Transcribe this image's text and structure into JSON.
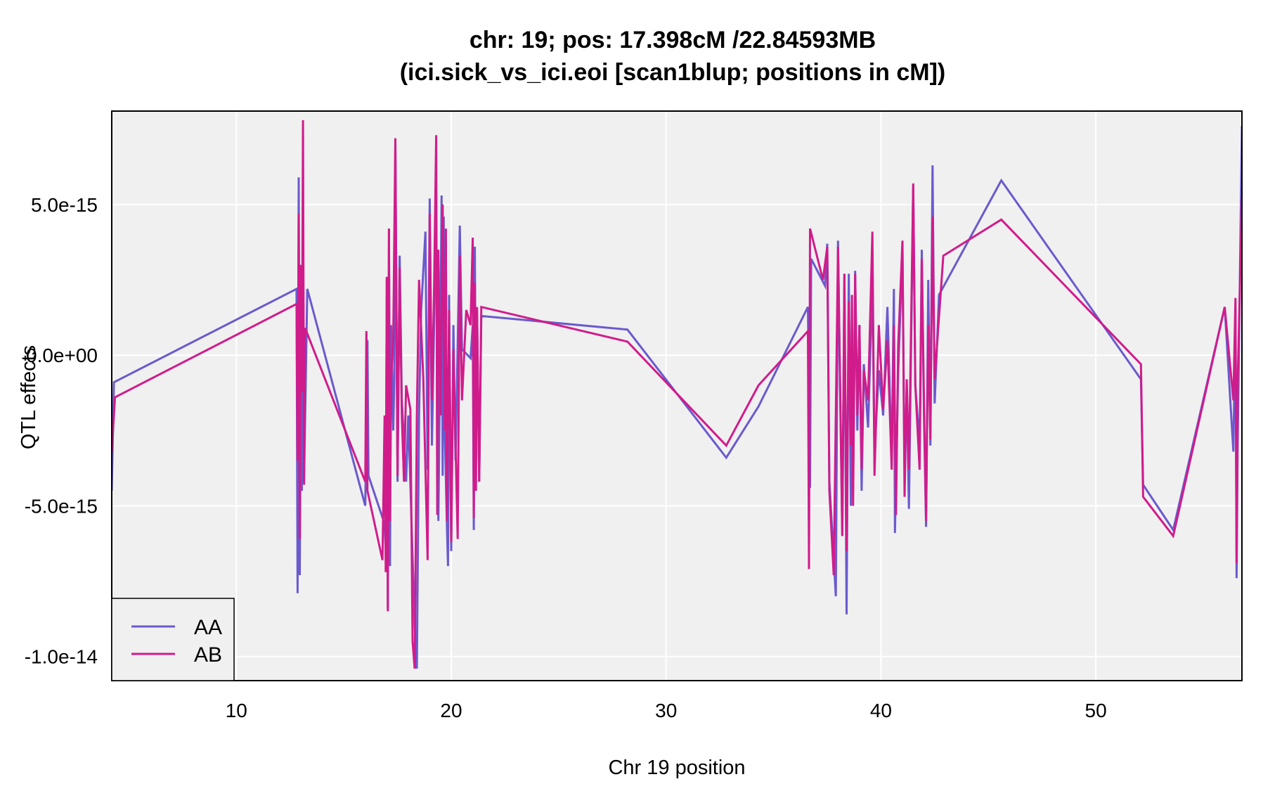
{
  "chart_data": {
    "type": "line",
    "title": "chr: 19; pos: 17.398cM /22.84593MB",
    "subtitle": "(ici.sick_vs_ici.eoi [scan1blup; positions in cM])",
    "xlabel": "Chr 19 position",
    "ylabel": "QTL effects",
    "xlim": [
      4.2,
      56.8
    ],
    "ylim": [
      -1.08e-14,
      8.1e-15
    ],
    "x_ticks": [
      10,
      20,
      30,
      40,
      50
    ],
    "x_tick_labels": [
      "10",
      "20",
      "30",
      "40",
      "50"
    ],
    "y_ticks": [
      -1e-14,
      -5e-15,
      0,
      5e-15
    ],
    "y_tick_labels": [
      "-1.0e-14",
      "-5.0e-15",
      "0.0e+00",
      "5.0e-15"
    ],
    "grid": true,
    "legend_position": "bottom-left",
    "background": "#f0f0f0",
    "series": [
      {
        "name": "AA",
        "color": "#6a5acd",
        "points": [
          [
            4.2,
            -4.5e-15
          ],
          [
            4.3,
            -9e-16
          ],
          [
            12.8,
            2.2e-15
          ],
          [
            12.85,
            -7.9e-15
          ],
          [
            12.9,
            5.9e-15
          ],
          [
            12.95,
            -7.3e-15
          ],
          [
            13.0,
            -1e-15
          ],
          [
            13.05,
            -4.5e-15
          ],
          [
            13.1,
            1e-15
          ],
          [
            13.15,
            -4.2e-15
          ],
          [
            13.3,
            2.2e-15
          ],
          [
            16.0,
            -5e-15
          ],
          [
            16.1,
            5e-16
          ],
          [
            16.15,
            -4e-15
          ],
          [
            16.9,
            -5.6e-15
          ],
          [
            16.95,
            -6.5e-15
          ],
          [
            17.0,
            2.5e-15
          ],
          [
            17.05,
            -8.4e-15
          ],
          [
            17.1,
            4.2e-15
          ],
          [
            17.15,
            -7e-15
          ],
          [
            17.2,
            1e-15
          ],
          [
            17.3,
            -2.5e-15
          ],
          [
            17.35,
            -8e-16
          ],
          [
            17.4,
            7e-15
          ],
          [
            17.5,
            -4.2e-15
          ],
          [
            17.6,
            3.3e-15
          ],
          [
            17.7,
            -1.5e-15
          ],
          [
            17.9,
            -4.2e-15
          ],
          [
            18.0,
            -2e-15
          ],
          [
            18.3,
            -9e-15
          ],
          [
            18.4,
            -1.04e-14
          ],
          [
            18.5,
            -2e-15
          ],
          [
            18.6,
            1.5e-15
          ],
          [
            18.8,
            4.1e-15
          ],
          [
            18.9,
            -3.8e-15
          ],
          [
            19.0,
            5.2e-15
          ],
          [
            19.1,
            -3e-15
          ],
          [
            19.2,
            1e-15
          ],
          [
            19.3,
            4.5e-15
          ],
          [
            19.4,
            -5.5e-15
          ],
          [
            19.5,
            1e-15
          ],
          [
            19.55,
            5.3e-15
          ],
          [
            19.6,
            -4e-15
          ],
          [
            19.65,
            4.6e-15
          ],
          [
            19.7,
            -2.5e-15
          ],
          [
            19.8,
            -5.7e-15
          ],
          [
            19.85,
            -7e-15
          ],
          [
            19.9,
            2e-15
          ],
          [
            20.0,
            -6.5e-15
          ],
          [
            20.1,
            1e-15
          ],
          [
            20.2,
            -3.5e-15
          ],
          [
            20.3,
            4e-16
          ],
          [
            20.4,
            4.3e-15
          ],
          [
            20.5,
            2e-16
          ],
          [
            20.9,
            -1e-16
          ],
          [
            21.0,
            1e-15
          ],
          [
            21.05,
            -5.8e-15
          ],
          [
            21.1,
            3.6e-15
          ],
          [
            21.15,
            -3.5e-15
          ],
          [
            21.2,
            1.5e-15
          ],
          [
            21.3,
            -4.2e-15
          ],
          [
            21.4,
            1.3e-15
          ],
          [
            28.2,
            8.5e-16
          ],
          [
            32.8,
            -3.4e-15
          ],
          [
            34.3,
            -1.7e-15
          ],
          [
            36.6,
            1.6e-15
          ],
          [
            36.7,
            -4.4e-15
          ],
          [
            36.75,
            3.2e-15
          ],
          [
            37.4,
            2.3e-15
          ],
          [
            37.5,
            3.7e-15
          ],
          [
            37.6,
            -4.2e-15
          ],
          [
            37.9,
            -8e-15
          ],
          [
            38.0,
            3.8e-15
          ],
          [
            38.2,
            -6e-15
          ],
          [
            38.3,
            2.7e-15
          ],
          [
            38.4,
            -8.6e-15
          ],
          [
            38.5,
            2.7e-15
          ],
          [
            38.6,
            -5e-15
          ],
          [
            38.65,
            1.5e-15
          ],
          [
            38.7,
            -4.5e-15
          ],
          [
            38.8,
            2.8e-15
          ],
          [
            38.9,
            -2.5e-15
          ],
          [
            39.0,
            1e-15
          ],
          [
            39.1,
            -4.5e-15
          ],
          [
            39.2,
            -3e-16
          ],
          [
            39.4,
            -2.4e-15
          ],
          [
            39.6,
            2.4e-15
          ],
          [
            39.7,
            -3.2e-15
          ],
          [
            39.9,
            -5e-16
          ],
          [
            40.1,
            -2e-15
          ],
          [
            40.3,
            1.6e-15
          ],
          [
            40.5,
            -3.5e-15
          ],
          [
            40.6,
            2.2e-15
          ],
          [
            40.65,
            -5.9e-15
          ],
          [
            40.8,
            -6e-16
          ],
          [
            41.0,
            3.5e-15
          ],
          [
            41.1,
            -4e-15
          ],
          [
            41.2,
            -1e-15
          ],
          [
            41.3,
            -5.1e-15
          ],
          [
            41.5,
            5.6e-15
          ],
          [
            41.6,
            -1e-15
          ],
          [
            41.8,
            -3e-15
          ],
          [
            41.9,
            3.5e-15
          ],
          [
            42.0,
            -2e-15
          ],
          [
            42.1,
            -5.7e-15
          ],
          [
            42.2,
            2.5e-15
          ],
          [
            42.3,
            -3e-15
          ],
          [
            42.4,
            6.3e-15
          ],
          [
            42.5,
            -1.6e-15
          ],
          [
            42.7,
            2e-15
          ],
          [
            45.6,
            5.8e-15
          ],
          [
            52.1,
            -8e-16
          ],
          [
            52.2,
            -4.3e-15
          ],
          [
            53.6,
            -5.8e-15
          ],
          [
            56.0,
            1.6e-15
          ],
          [
            56.4,
            -3.2e-15
          ],
          [
            56.5,
            1.6e-15
          ],
          [
            56.55,
            -7.4e-15
          ],
          [
            56.6,
            -3e-15
          ],
          [
            56.8,
            7.6e-15
          ]
        ]
      },
      {
        "name": "AB",
        "color": "#d01c8b",
        "points": [
          [
            4.2,
            -3.2e-15
          ],
          [
            4.35,
            -1.4e-15
          ],
          [
            12.8,
            1.7e-15
          ],
          [
            12.85,
            -3.5e-15
          ],
          [
            12.9,
            4.7e-15
          ],
          [
            12.95,
            -6.1e-15
          ],
          [
            13.0,
            3e-15
          ],
          [
            13.05,
            -1.2e-15
          ],
          [
            13.1,
            7.8e-15
          ],
          [
            13.15,
            -4.3e-15
          ],
          [
            13.2,
            9e-16
          ],
          [
            16.0,
            -4.2e-15
          ],
          [
            16.05,
            8e-16
          ],
          [
            16.1,
            -4.5e-15
          ],
          [
            16.8,
            -6.8e-15
          ],
          [
            16.9,
            -2e-15
          ],
          [
            16.95,
            -7.2e-15
          ],
          [
            17.0,
            2.6e-15
          ],
          [
            17.05,
            -8.5e-15
          ],
          [
            17.1,
            4.2e-15
          ],
          [
            17.15,
            -5.5e-15
          ],
          [
            17.2,
            -8e-16
          ],
          [
            17.3,
            5e-16
          ],
          [
            17.4,
            7.2e-15
          ],
          [
            17.5,
            -4e-15
          ],
          [
            17.6,
            2.9e-15
          ],
          [
            17.7,
            -2e-15
          ],
          [
            17.8,
            -4.2e-15
          ],
          [
            17.9,
            -1e-15
          ],
          [
            18.1,
            -1.8e-15
          ],
          [
            18.2,
            -9.5e-15
          ],
          [
            18.3,
            -1.04e-14
          ],
          [
            18.4,
            -2e-15
          ],
          [
            18.5,
            2.5e-15
          ],
          [
            18.7,
            -8e-16
          ],
          [
            18.9,
            -6.8e-15
          ],
          [
            19.0,
            4.7e-15
          ],
          [
            19.1,
            -1.5e-15
          ],
          [
            19.2,
            2.2e-15
          ],
          [
            19.3,
            7.3e-15
          ],
          [
            19.35,
            -5.3e-15
          ],
          [
            19.4,
            3.5e-15
          ],
          [
            19.5,
            -2e-15
          ],
          [
            19.6,
            5e-15
          ],
          [
            19.7,
            -2.5e-15
          ],
          [
            19.75,
            4.2e-15
          ],
          [
            19.8,
            -5.5e-15
          ],
          [
            19.9,
            1.5e-15
          ],
          [
            20.0,
            -6.2e-15
          ],
          [
            20.1,
            2e-16
          ],
          [
            20.2,
            -3e-15
          ],
          [
            20.3,
            -6.1e-15
          ],
          [
            20.4,
            3.3e-15
          ],
          [
            20.5,
            -1.5e-15
          ],
          [
            20.7,
            1.5e-15
          ],
          [
            20.9,
            1e-15
          ],
          [
            21.0,
            3.9e-15
          ],
          [
            21.05,
            -5.4e-15
          ],
          [
            21.1,
            2.4e-15
          ],
          [
            21.15,
            -4.5e-15
          ],
          [
            21.2,
            1.6e-15
          ],
          [
            21.3,
            -4.2e-15
          ],
          [
            21.4,
            1.6e-15
          ],
          [
            28.2,
            4.5e-16
          ],
          [
            32.8,
            -3e-15
          ],
          [
            34.3,
            -1e-15
          ],
          [
            36.6,
            8e-16
          ],
          [
            36.65,
            -7.1e-15
          ],
          [
            36.7,
            4.2e-15
          ],
          [
            37.3,
            2.5e-15
          ],
          [
            37.5,
            3.6e-15
          ],
          [
            37.6,
            -4.5e-15
          ],
          [
            37.8,
            -7.3e-15
          ],
          [
            38.0,
            3.6e-15
          ],
          [
            38.2,
            -6e-15
          ],
          [
            38.3,
            2.7e-15
          ],
          [
            38.4,
            -6.5e-15
          ],
          [
            38.5,
            1.8e-15
          ],
          [
            38.6,
            -3e-15
          ],
          [
            38.65,
            2e-15
          ],
          [
            38.7,
            -5e-15
          ],
          [
            38.8,
            2.7e-15
          ],
          [
            38.9,
            -2e-15
          ],
          [
            39.0,
            1e-15
          ],
          [
            39.1,
            -3.8e-15
          ],
          [
            39.2,
            -5e-16
          ],
          [
            39.4,
            -1.5e-15
          ],
          [
            39.6,
            4.1e-15
          ],
          [
            39.7,
            -4e-15
          ],
          [
            39.9,
            1e-15
          ],
          [
            40.1,
            -1.8e-15
          ],
          [
            40.3,
            5e-16
          ],
          [
            40.5,
            -3.8e-15
          ],
          [
            40.6,
            1e-15
          ],
          [
            40.7,
            -5.3e-15
          ],
          [
            40.8,
            3e-16
          ],
          [
            41.0,
            3.8e-15
          ],
          [
            41.1,
            -4.7e-15
          ],
          [
            41.2,
            -8e-16
          ],
          [
            41.3,
            -3.8e-15
          ],
          [
            41.5,
            5.7e-15
          ],
          [
            41.6,
            -1e-15
          ],
          [
            41.8,
            -3.8e-15
          ],
          [
            41.9,
            3.2e-15
          ],
          [
            42.0,
            -1.5e-15
          ],
          [
            42.1,
            -5.5e-15
          ],
          [
            42.2,
            1e-15
          ],
          [
            42.3,
            -2.8e-15
          ],
          [
            42.4,
            4.6e-15
          ],
          [
            42.5,
            -8e-16
          ],
          [
            42.9,
            3.3e-15
          ],
          [
            45.6,
            4.5e-15
          ],
          [
            52.1,
            -3e-16
          ],
          [
            52.2,
            -4.7e-15
          ],
          [
            53.6,
            -6e-15
          ],
          [
            56.0,
            1.6e-15
          ],
          [
            56.4,
            -1.5e-15
          ],
          [
            56.5,
            1.9e-15
          ],
          [
            56.55,
            -6.9e-15
          ],
          [
            56.6,
            -1e-15
          ],
          [
            56.8,
            5.2e-15
          ]
        ]
      }
    ]
  }
}
